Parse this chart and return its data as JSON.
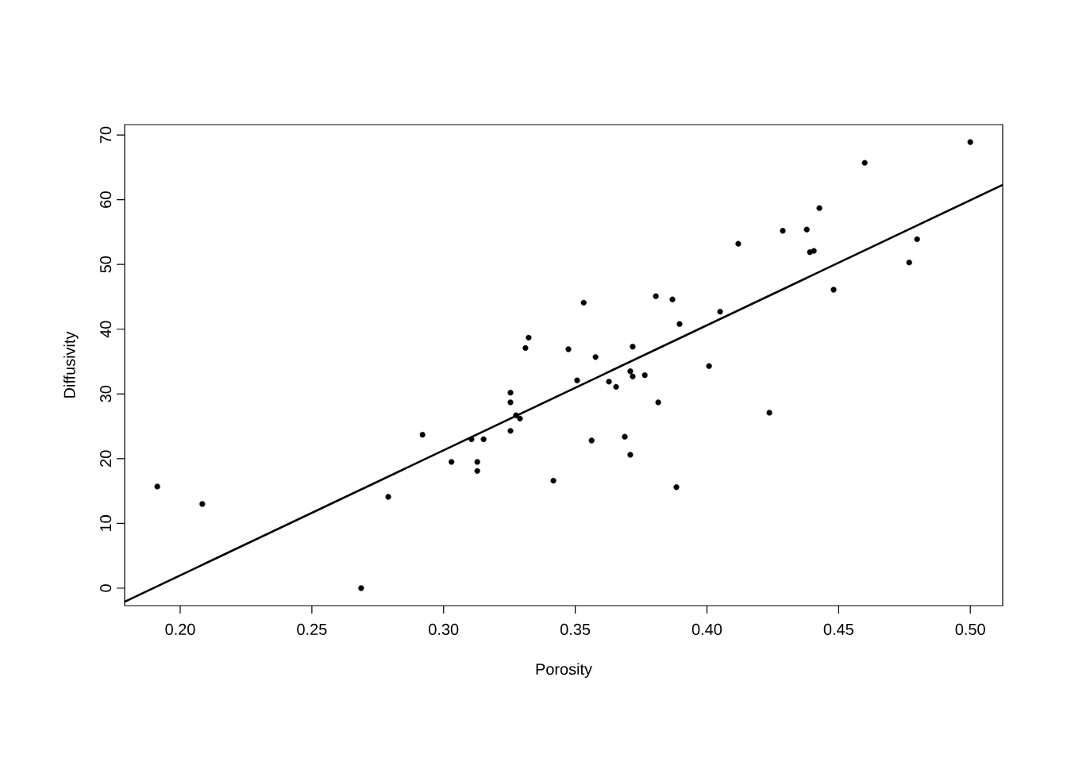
{
  "chart_data": {
    "type": "scatter",
    "xlabel": "Porosity",
    "ylabel": "Diffusivity",
    "xlim": [
      0.1789,
      0.5123
    ],
    "ylim": [
      -2.7,
      71.6
    ],
    "xticks": [
      {
        "value": 0.2,
        "label": "0.20"
      },
      {
        "value": 0.25,
        "label": "0.25"
      },
      {
        "value": 0.3,
        "label": "0.30"
      },
      {
        "value": 0.35,
        "label": "0.35"
      },
      {
        "value": 0.4,
        "label": "0.40"
      },
      {
        "value": 0.45,
        "label": "0.45"
      },
      {
        "value": 0.5,
        "label": "0.50"
      }
    ],
    "yticks": [
      0,
      10,
      20,
      30,
      40,
      50,
      60,
      70
    ],
    "grid": false,
    "series": [
      {
        "marker": "circle",
        "color": "#000000",
        "x": [
          0.1913,
          0.2084,
          0.2687,
          0.279,
          0.292,
          0.303,
          0.3106,
          0.3128,
          0.3128,
          0.3152,
          0.3254,
          0.3254,
          0.3254,
          0.3275,
          0.329,
          0.3311,
          0.3323,
          0.3417,
          0.3474,
          0.3507,
          0.3532,
          0.3562,
          0.3577,
          0.3628,
          0.3655,
          0.3688,
          0.3709,
          0.3709,
          0.3718,
          0.3718,
          0.3764,
          0.3806,
          0.3815,
          0.3869,
          0.3884,
          0.3896,
          0.4008,
          0.405,
          0.4119,
          0.4237,
          0.4288,
          0.4379,
          0.4391,
          0.4406,
          0.4427,
          0.4481,
          0.4599,
          0.4768,
          0.4798,
          0.5
        ],
        "values": [
          15.7,
          13.0,
          0.0,
          14.1,
          23.7,
          19.5,
          23.0,
          19.5,
          18.1,
          23.0,
          30.2,
          28.7,
          24.3,
          26.7,
          26.2,
          37.1,
          38.7,
          16.6,
          36.9,
          32.1,
          44.1,
          22.8,
          35.7,
          31.9,
          31.1,
          23.4,
          33.5,
          20.6,
          32.7,
          37.3,
          32.9,
          45.1,
          28.7,
          44.6,
          15.6,
          40.8,
          34.3,
          42.7,
          53.2,
          27.1,
          55.2,
          55.4,
          51.9,
          52.1,
          58.7,
          46.1,
          65.7,
          50.3,
          53.9,
          68.9
        ]
      },
      {
        "type": "line",
        "color": "#000000",
        "x": [
          0.1789,
          0.5123
        ],
        "values": [
          -2.1,
          62.3
        ]
      }
    ]
  }
}
